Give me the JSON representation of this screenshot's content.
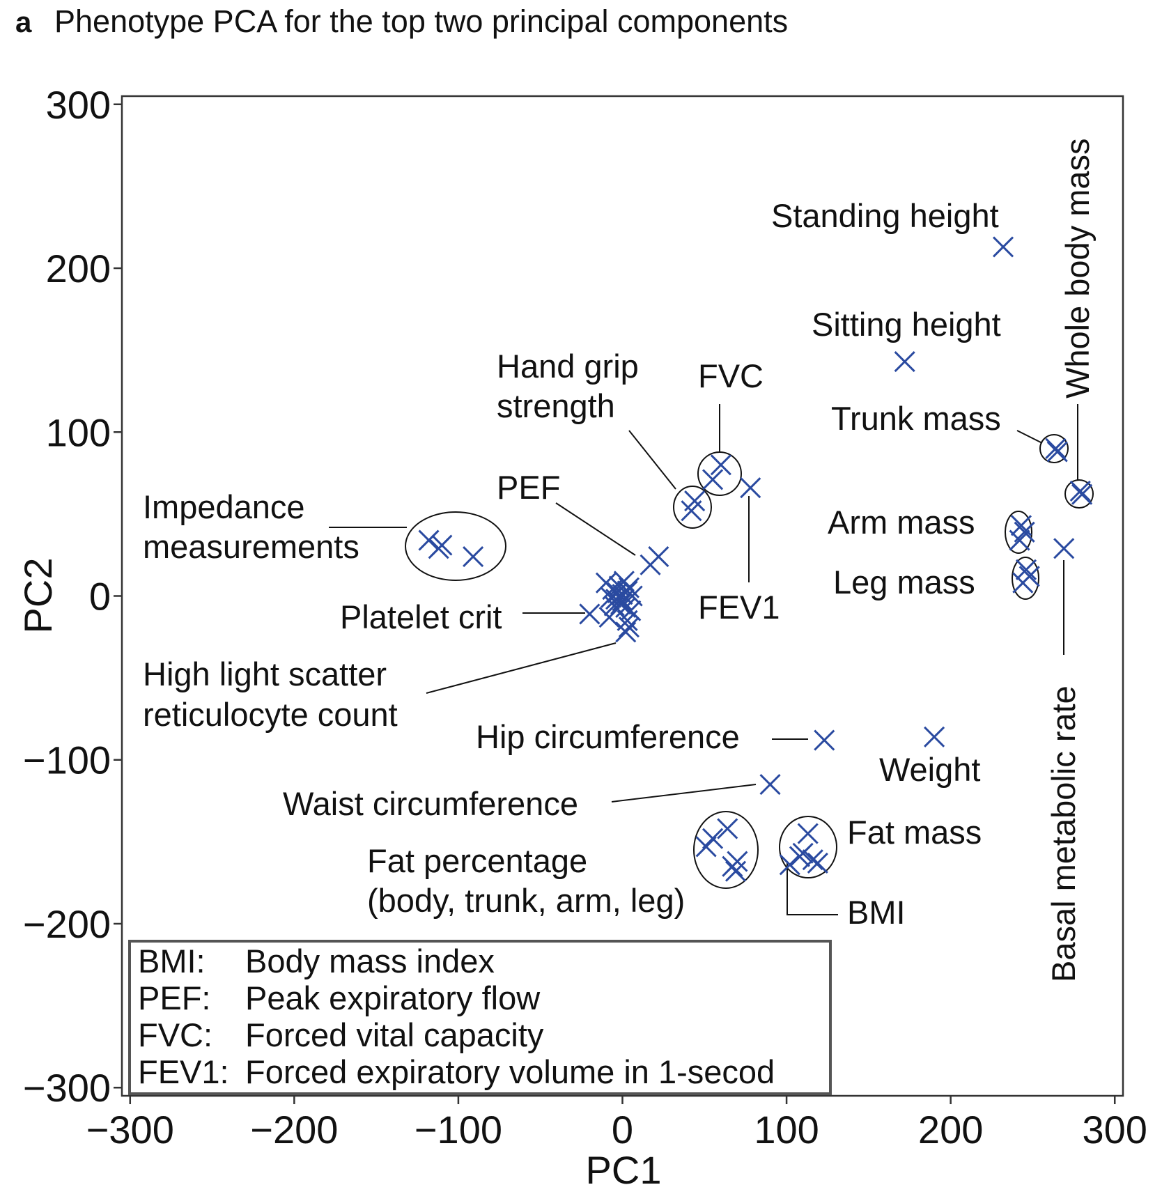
{
  "chart_data": {
    "type": "scatter",
    "panel_letter": "a",
    "title": "Phenotype PCA for the top two principal components",
    "xlabel": "PC1",
    "ylabel": "PC2",
    "xlim": [
      -305,
      305
    ],
    "ylim": [
      -305,
      305
    ],
    "xticks": [
      -300,
      -200,
      -100,
      0,
      100,
      200,
      300
    ],
    "yticks": [
      -300,
      -200,
      -100,
      0,
      100,
      200,
      300
    ],
    "xtick_labels": [
      "−300",
      "−200",
      "−100",
      "0",
      "100",
      "200",
      "300"
    ],
    "ytick_labels": [
      "−300",
      "−200",
      "−100",
      "0",
      "100",
      "200",
      "300"
    ],
    "marker": "x",
    "marker_color": "#2a4aa0",
    "grid": false,
    "points": [
      {
        "x": 232,
        "y": 213
      },
      {
        "x": 172,
        "y": 143
      },
      {
        "x": 264,
        "y": 90
      },
      {
        "x": 265,
        "y": 88
      },
      {
        "x": 279,
        "y": 64
      },
      {
        "x": 280,
        "y": 62
      },
      {
        "x": 243,
        "y": 43
      },
      {
        "x": 245,
        "y": 39
      },
      {
        "x": 242,
        "y": 34
      },
      {
        "x": 246,
        "y": 16
      },
      {
        "x": 248,
        "y": 12
      },
      {
        "x": 244,
        "y": 8
      },
      {
        "x": 269,
        "y": 29
      },
      {
        "x": 60,
        "y": 80
      },
      {
        "x": 55,
        "y": 71
      },
      {
        "x": 44,
        "y": 58
      },
      {
        "x": 42,
        "y": 52
      },
      {
        "x": 78,
        "y": 66
      },
      {
        "x": 22,
        "y": 24
      },
      {
        "x": 17,
        "y": 19
      },
      {
        "x": -118,
        "y": 34
      },
      {
        "x": -110,
        "y": 31
      },
      {
        "x": -112,
        "y": 29
      },
      {
        "x": -91,
        "y": 24
      },
      {
        "x": -10,
        "y": 8
      },
      {
        "x": -6,
        "y": 4
      },
      {
        "x": -3,
        "y": 2
      },
      {
        "x": 0,
        "y": 1
      },
      {
        "x": 3,
        "y": 3
      },
      {
        "x": 6,
        "y": 0
      },
      {
        "x": -4,
        "y": -2
      },
      {
        "x": -1,
        "y": -5
      },
      {
        "x": 2,
        "y": -7
      },
      {
        "x": 5,
        "y": -9
      },
      {
        "x": -7,
        "y": -1
      },
      {
        "x": -2,
        "y": 6
      },
      {
        "x": 1,
        "y": 9
      },
      {
        "x": 4,
        "y": 5
      },
      {
        "x": -5,
        "y": -6
      },
      {
        "x": 0,
        "y": -3
      },
      {
        "x": -20,
        "y": -11
      },
      {
        "x": -8,
        "y": -13
      },
      {
        "x": 3,
        "y": -15
      },
      {
        "x": 4,
        "y": -19
      },
      {
        "x": 2,
        "y": -22
      },
      {
        "x": 123,
        "y": -88
      },
      {
        "x": 190,
        "y": -86
      },
      {
        "x": 90,
        "y": -115
      },
      {
        "x": 64,
        "y": -142
      },
      {
        "x": 55,
        "y": -148
      },
      {
        "x": 51,
        "y": -153
      },
      {
        "x": 70,
        "y": -162
      },
      {
        "x": 67,
        "y": -165
      },
      {
        "x": 69,
        "y": -168
      },
      {
        "x": 113,
        "y": -145
      },
      {
        "x": 110,
        "y": -157
      },
      {
        "x": 116,
        "y": -161
      },
      {
        "x": 119,
        "y": -163
      },
      {
        "x": 102,
        "y": -164
      },
      {
        "x": 108,
        "y": -159
      }
    ],
    "annotations": [
      "Standing height",
      "Sitting height",
      "Trunk mass",
      "Whole body mass",
      "Arm mass",
      "Leg mass",
      "Basal metabolic rate",
      "Hand grip",
      "strength",
      "FVC",
      "FEV1",
      "PEF",
      "Impedance",
      "measurements",
      "Platelet crit",
      "High light scatter",
      "reticulocyte count",
      "Hip circumference",
      "Weight",
      "Waist circumference",
      "Fat percentage",
      "(body, trunk, arm, leg)",
      "Fat mass",
      "BMI"
    ],
    "legend": [
      {
        "abbr": "BMI:",
        "full": "Body mass index"
      },
      {
        "abbr": "PEF:",
        "full": "Peak expiratory flow"
      },
      {
        "abbr": "FVC:",
        "full": "Forced vital capacity"
      },
      {
        "abbr": "FEV1:",
        "full": "Forced expiratory volume in 1-secod"
      }
    ],
    "legend_position": "bottom-left"
  }
}
